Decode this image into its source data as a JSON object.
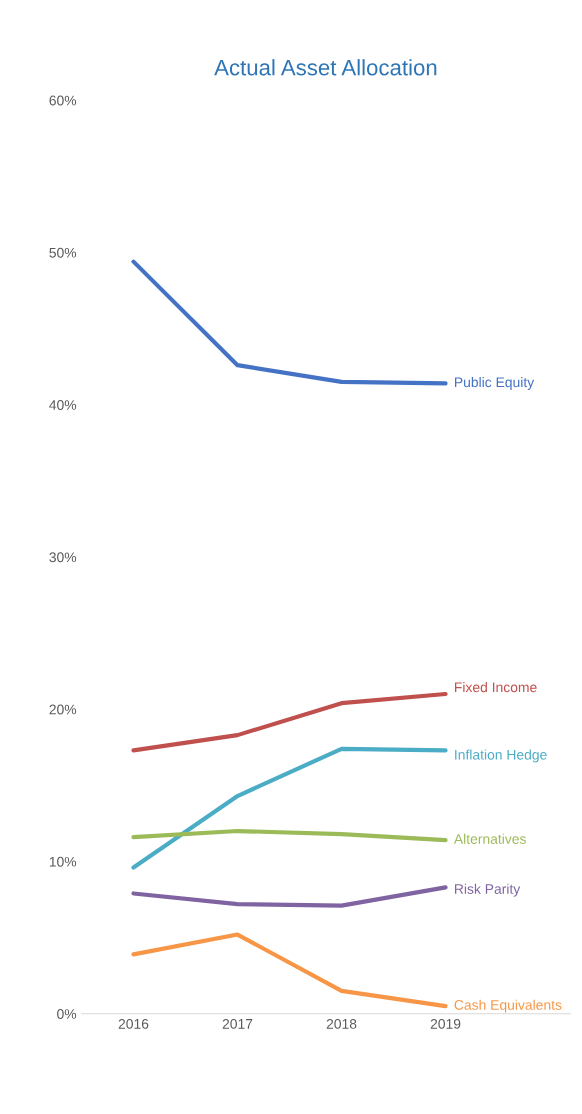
{
  "chart_data": {
    "type": "line",
    "title": "Actual Asset Allocation",
    "categories": [
      "2016",
      "2017",
      "2018",
      "2019"
    ],
    "series": [
      {
        "name": "Public Equity",
        "color": "#4472c4",
        "values": [
          49.4,
          42.6,
          41.5,
          41.4
        ]
      },
      {
        "name": "Fixed Income",
        "color": "#c0504d",
        "values": [
          17.3,
          18.3,
          20.4,
          21.0
        ]
      },
      {
        "name": "Inflation Hedge",
        "color": "#4bacc6",
        "values": [
          9.6,
          14.3,
          17.4,
          17.3
        ]
      },
      {
        "name": "Alternatives",
        "color": "#9bbb59",
        "values": [
          11.6,
          12.0,
          11.8,
          11.4
        ]
      },
      {
        "name": "Risk Parity",
        "color": "#8064a2",
        "values": [
          7.9,
          7.2,
          7.1,
          8.3
        ]
      },
      {
        "name": "Cash Equivalents",
        "color": "#f79646",
        "values": [
          3.9,
          5.2,
          1.5,
          0.5
        ]
      }
    ],
    "ylim": [
      0,
      60
    ],
    "yticks": [
      {
        "value": 0,
        "label": "0%"
      },
      {
        "value": 10,
        "label": "10%"
      },
      {
        "value": 20,
        "label": "20%"
      },
      {
        "value": 30,
        "label": "30%"
      },
      {
        "value": 40,
        "label": "40%"
      },
      {
        "value": 50,
        "label": "50%"
      },
      {
        "value": 60,
        "label": "60%"
      }
    ],
    "grid": false,
    "legend": false,
    "marker": "none",
    "line_style": "solid"
  }
}
